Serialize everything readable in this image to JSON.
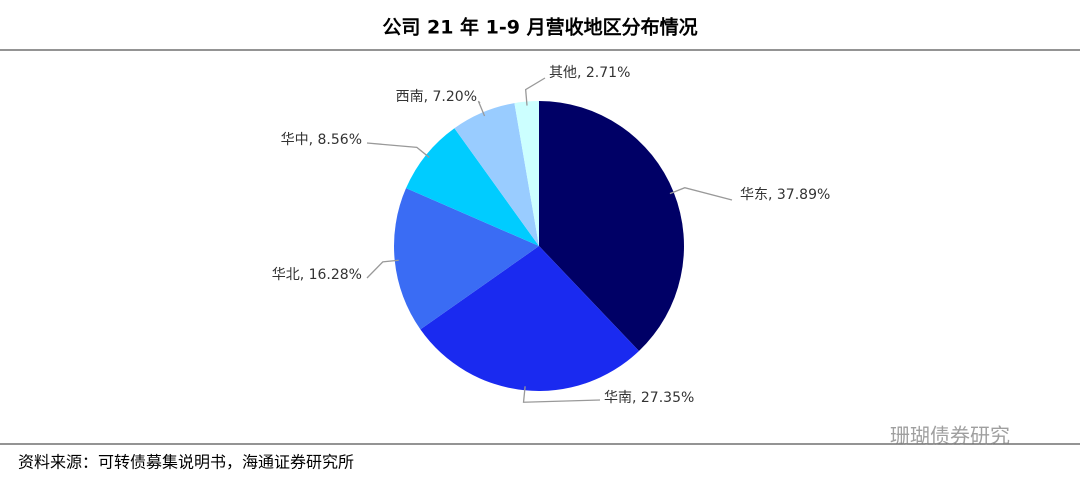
{
  "chart_data": {
    "type": "pie",
    "title": "公司 21 年 1-9 月营收地区分布情况",
    "values": [
      37.89,
      27.35,
      16.28,
      8.56,
      7.2,
      2.71
    ],
    "value_labels": [
      "华东, 37.89%",
      "华南, 27.35%",
      "华北, 16.28%",
      "华中, 8.56%",
      "西南, 7.20%",
      "其他, 2.71%"
    ],
    "colors": [
      "#000066",
      "#1a2af0",
      "#3a6cf4",
      "#00ccff",
      "#99ccff",
      "#ccffff"
    ],
    "source": "资料来源：可转债募集说明书，海通证券研究所",
    "watermark": "珊瑚债券研究"
  }
}
